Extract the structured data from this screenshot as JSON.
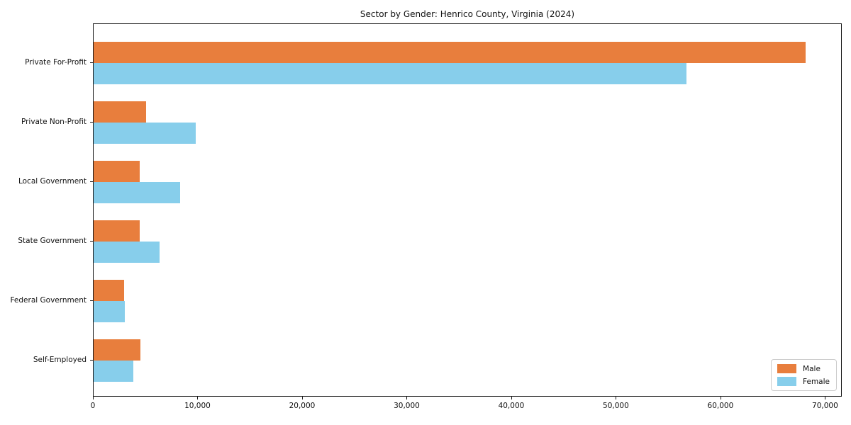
{
  "chart_data": {
    "type": "bar",
    "orientation": "horizontal",
    "title": "Sector by Gender: Henrico County, Virginia (2024)",
    "xlabel": "",
    "ylabel": "",
    "categories": [
      "Private For-Profit",
      "Private Non-Profit",
      "Local Government",
      "State Government",
      "Federal Government",
      "Self-Employed"
    ],
    "series": [
      {
        "name": "Male",
        "color": "#e87e3d",
        "values": [
          68200,
          5000,
          4400,
          4400,
          2900,
          4500
        ]
      },
      {
        "name": "Female",
        "color": "#87ceeb",
        "values": [
          56800,
          9800,
          8300,
          6300,
          3000,
          3800
        ]
      }
    ],
    "xlim": [
      0,
      71600
    ],
    "xticks": [
      0,
      10000,
      20000,
      30000,
      40000,
      50000,
      60000,
      70000
    ],
    "xtick_labels": [
      "0",
      "10,000",
      "20,000",
      "30,000",
      "40,000",
      "50,000",
      "60,000",
      "70,000"
    ],
    "grid": false,
    "legend": {
      "position": "lower right",
      "entries": [
        "Male",
        "Female"
      ]
    }
  }
}
